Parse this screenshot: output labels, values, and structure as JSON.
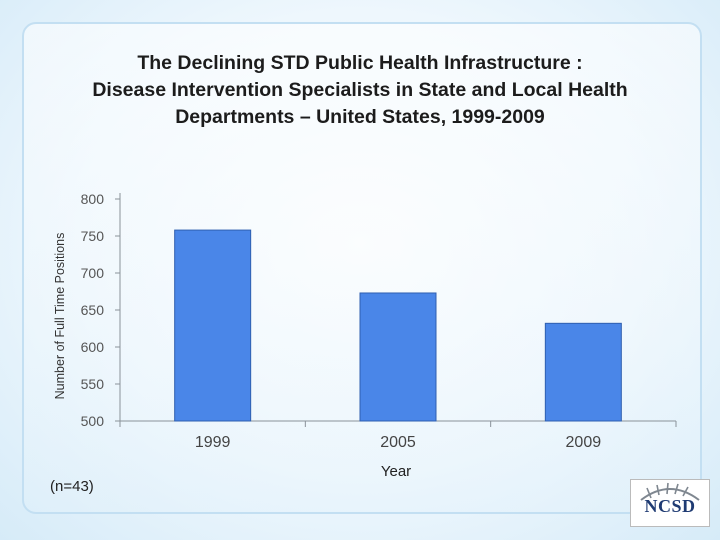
{
  "title_lines": [
    "The Declining STD Public Health Infrastructure :",
    "Disease Intervention Specialists in State and Local Health",
    "Departments – United States, 1999-2009"
  ],
  "note": "(n=43)",
  "logo_text": "NCSD",
  "colors": {
    "bar": "#4a86e8",
    "bar_edge": "#2f5fb0",
    "axis": "#8a9299",
    "grid": "#cdd5dc"
  },
  "chart_data": {
    "type": "bar",
    "categories": [
      "1999",
      "2005",
      "2009"
    ],
    "values": [
      758,
      673,
      632
    ],
    "xlabel": "Year",
    "ylabel": "Number of Full Time Positions",
    "ylim": [
      500,
      800
    ],
    "yticks": [
      800,
      750,
      700,
      650,
      600,
      550,
      500
    ],
    "grid": false,
    "legend": "none"
  }
}
